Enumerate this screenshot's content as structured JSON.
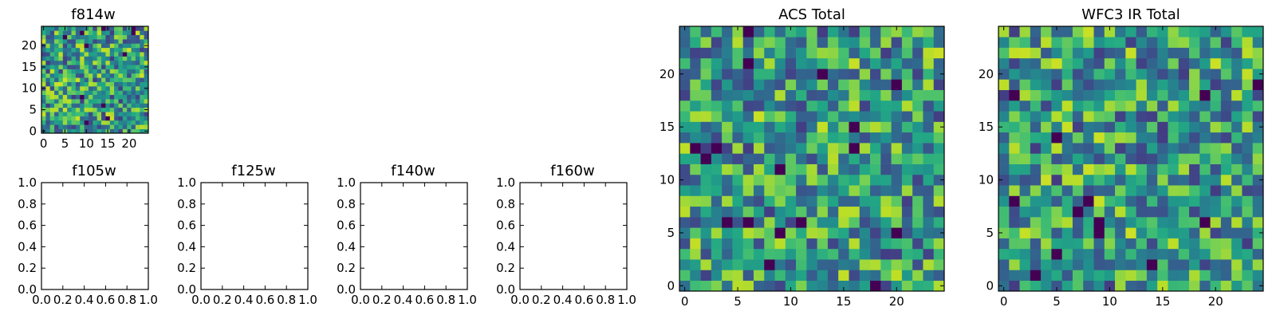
{
  "figure": {
    "title": ""
  },
  "chart_data": [
    {
      "id": "f814w",
      "type": "heatmap",
      "title": "f814w",
      "xlabel": "",
      "ylabel": "",
      "xlim": [
        -0.5,
        24.5
      ],
      "ylim": [
        -0.5,
        24.5
      ],
      "grid_size": [
        25,
        25
      ],
      "colormap": "viridis",
      "x_ticks": [
        0,
        5,
        10,
        15,
        20
      ],
      "y_ticks": [
        0,
        5,
        10,
        15,
        20
      ],
      "values": "random field of pixel intensities (noise, values approx. 0-1)"
    },
    {
      "id": "f105w",
      "type": "empty",
      "title": "f105w",
      "xlim": [
        0.0,
        1.0
      ],
      "ylim": [
        0.0,
        1.0
      ],
      "x_ticks": [
        "0.0",
        "0.2",
        "0.4",
        "0.6",
        "0.8",
        "1.0"
      ],
      "y_ticks": [
        "0.0",
        "0.2",
        "0.4",
        "0.6",
        "0.8",
        "1.0"
      ]
    },
    {
      "id": "f125w",
      "type": "empty",
      "title": "f125w",
      "xlim": [
        0.0,
        1.0
      ],
      "ylim": [
        0.0,
        1.0
      ],
      "x_ticks": [
        "0.0",
        "0.2",
        "0.4",
        "0.6",
        "0.8",
        "1.0"
      ],
      "y_ticks": [
        "0.0",
        "0.2",
        "0.4",
        "0.6",
        "0.8",
        "1.0"
      ]
    },
    {
      "id": "f140w",
      "type": "empty",
      "title": "f140w",
      "xlim": [
        0.0,
        1.0
      ],
      "ylim": [
        0.0,
        1.0
      ],
      "x_ticks": [
        "0.0",
        "0.2",
        "0.4",
        "0.6",
        "0.8",
        "1.0"
      ],
      "y_ticks": [
        "0.0",
        "0.2",
        "0.4",
        "0.6",
        "0.8",
        "1.0"
      ]
    },
    {
      "id": "f160w",
      "type": "empty",
      "title": "f160w",
      "xlim": [
        0.0,
        1.0
      ],
      "ylim": [
        0.0,
        1.0
      ],
      "x_ticks": [
        "0.0",
        "0.2",
        "0.4",
        "0.6",
        "0.8",
        "1.0"
      ],
      "y_ticks": [
        "0.0",
        "0.2",
        "0.4",
        "0.6",
        "0.8",
        "1.0"
      ]
    },
    {
      "id": "acs_total",
      "type": "heatmap",
      "title": "ACS Total",
      "xlim": [
        -0.5,
        24.5
      ],
      "ylim": [
        -0.5,
        24.5
      ],
      "grid_size": [
        25,
        25
      ],
      "colormap": "viridis",
      "x_ticks": [
        0,
        5,
        10,
        15,
        20
      ],
      "y_ticks": [
        0,
        5,
        10,
        15,
        20
      ],
      "values": "random field of pixel intensities (noise, values approx. 0-1)"
    },
    {
      "id": "wfc3_ir_total",
      "type": "heatmap",
      "title": "WFC3 IR Total",
      "xlim": [
        -0.5,
        24.5
      ],
      "ylim": [
        -0.5,
        24.5
      ],
      "grid_size": [
        25,
        25
      ],
      "colormap": "viridis",
      "x_ticks": [
        0,
        5,
        10,
        15,
        20
      ],
      "y_ticks": [
        0,
        5,
        10,
        15,
        20
      ],
      "values": "random field of pixel intensities (noise, values approx. 0-1)"
    }
  ]
}
